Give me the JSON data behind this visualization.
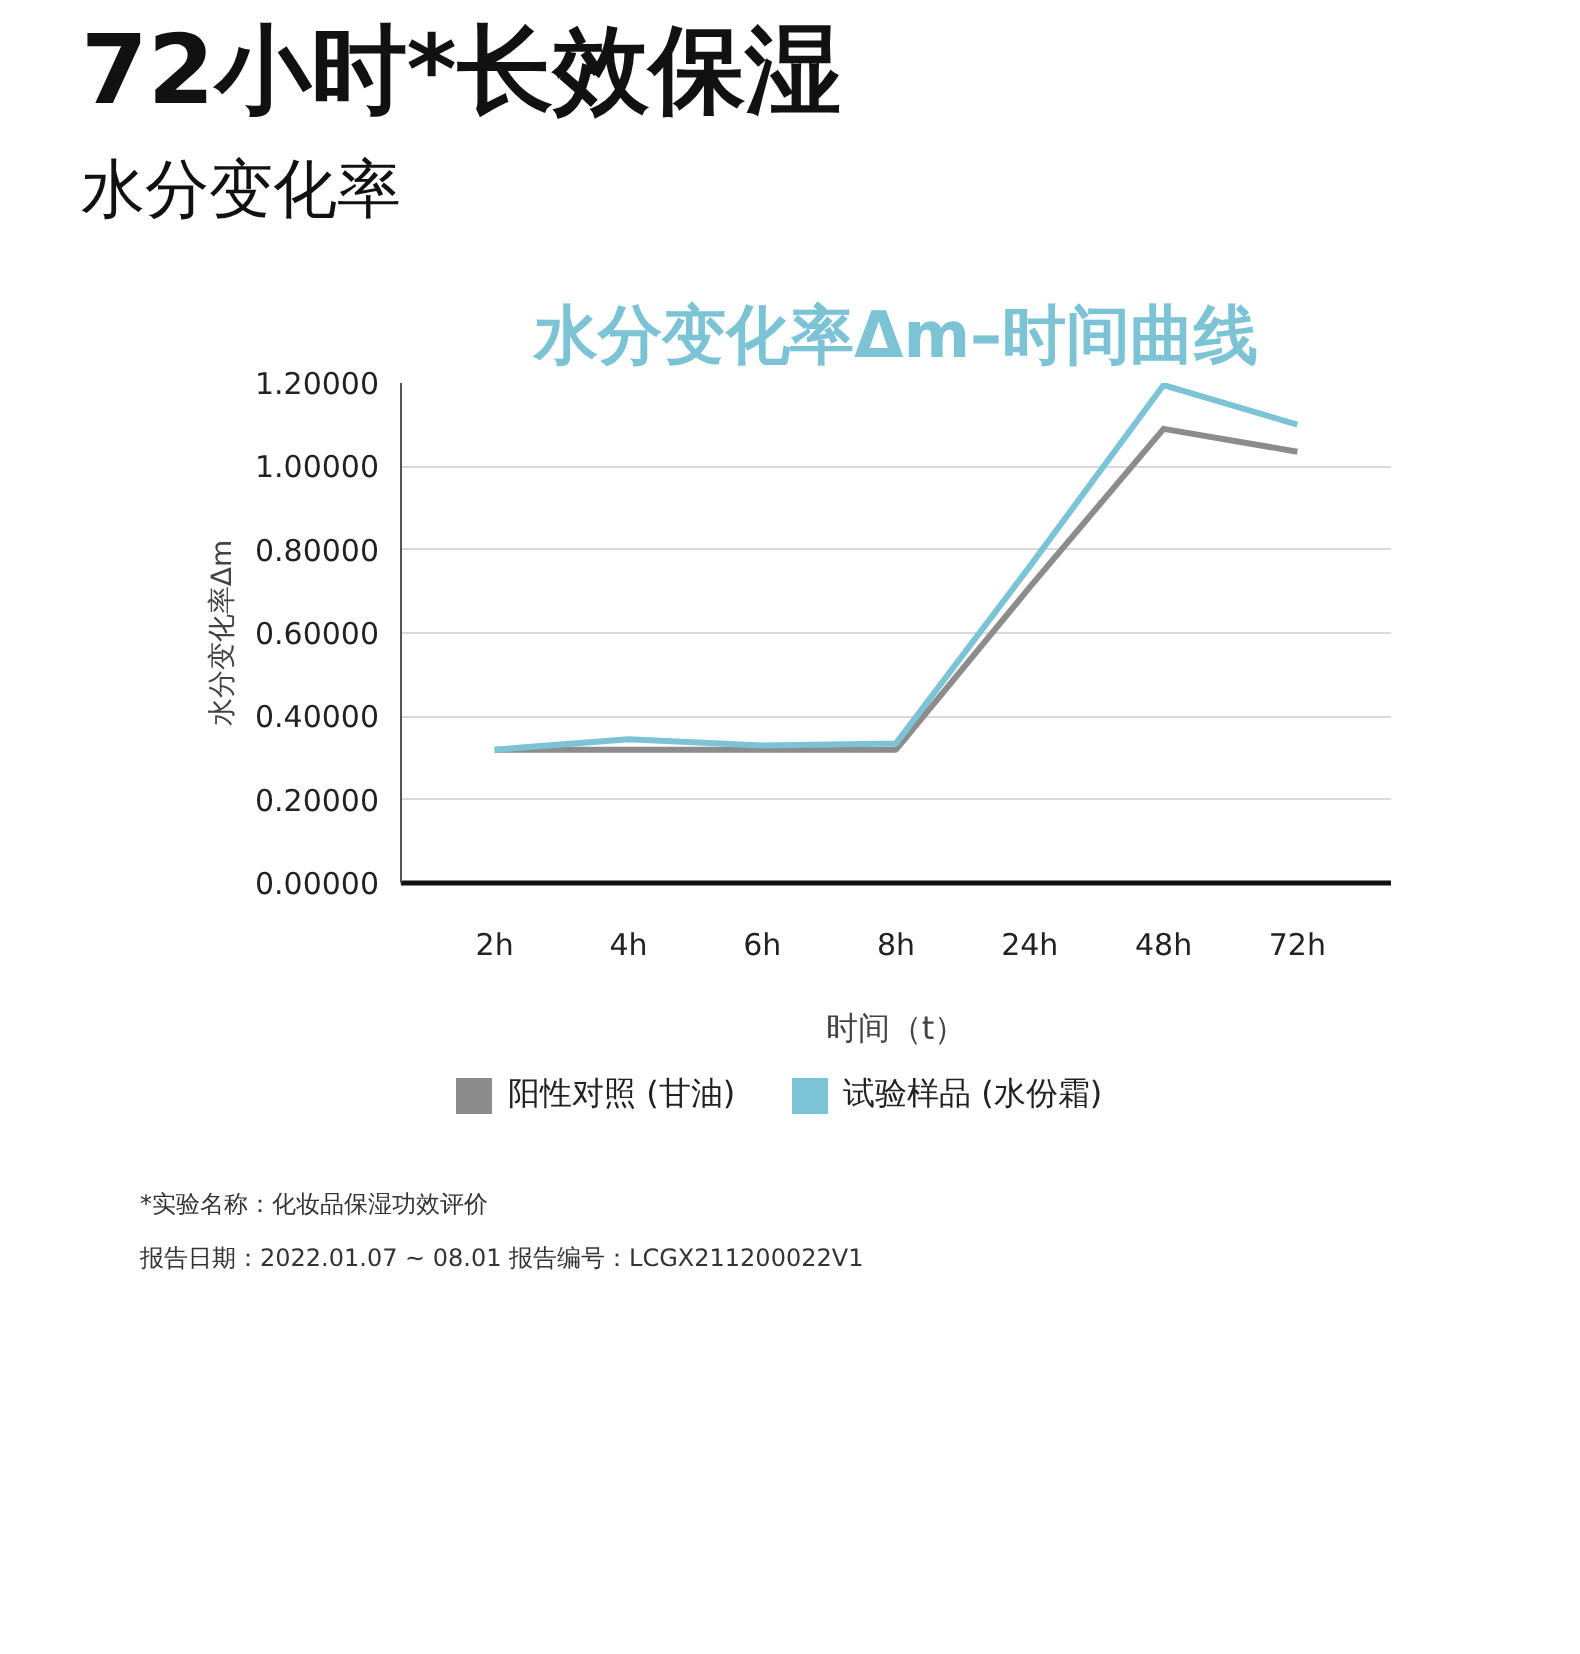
{
  "chart_data": {
    "type": "line",
    "title": "水分变化率Δm–时间曲线",
    "xlabel": "时间（t）",
    "ylabel": "水分变化率Δm",
    "categories": [
      "2h",
      "4h",
      "6h",
      "8h",
      "24h",
      "48h",
      "72h"
    ],
    "series": [
      {
        "name": "阳性对照 (甘油)",
        "color": "#8c8c8c",
        "values": [
          0.32,
          0.32,
          0.32,
          0.32,
          0.71,
          1.09,
          1.035
        ]
      },
      {
        "name": "试验样品 (水份霜)",
        "color": "#7cc3d5",
        "values": [
          0.32,
          0.345,
          0.33,
          0.335,
          0.76,
          1.195,
          1.1
        ]
      }
    ],
    "ylim": [
      0,
      1.2
    ],
    "yticks": [
      {
        "value": 0,
        "label": "0.00000"
      },
      {
        "value": 0.2,
        "label": "0.20000"
      },
      {
        "value": 0.4,
        "label": "0.40000"
      },
      {
        "value": 0.6,
        "label": "0.60000"
      },
      {
        "value": 0.8,
        "label": "0.80000"
      },
      {
        "value": 1.0,
        "label": "1.00000"
      },
      {
        "value": 1.2,
        "label": "1.20000"
      }
    ],
    "grid": "y",
    "legend": "bottom",
    "marker": "none",
    "line_style": "solid",
    "annotations": [
      "72小时*长效保湿",
      "水分变化率",
      "*实验名称：化妆品保湿功效评价",
      "报告日期：2022.01.07 ~ 08.01    报告编号：LCGX211200022V1"
    ]
  }
}
